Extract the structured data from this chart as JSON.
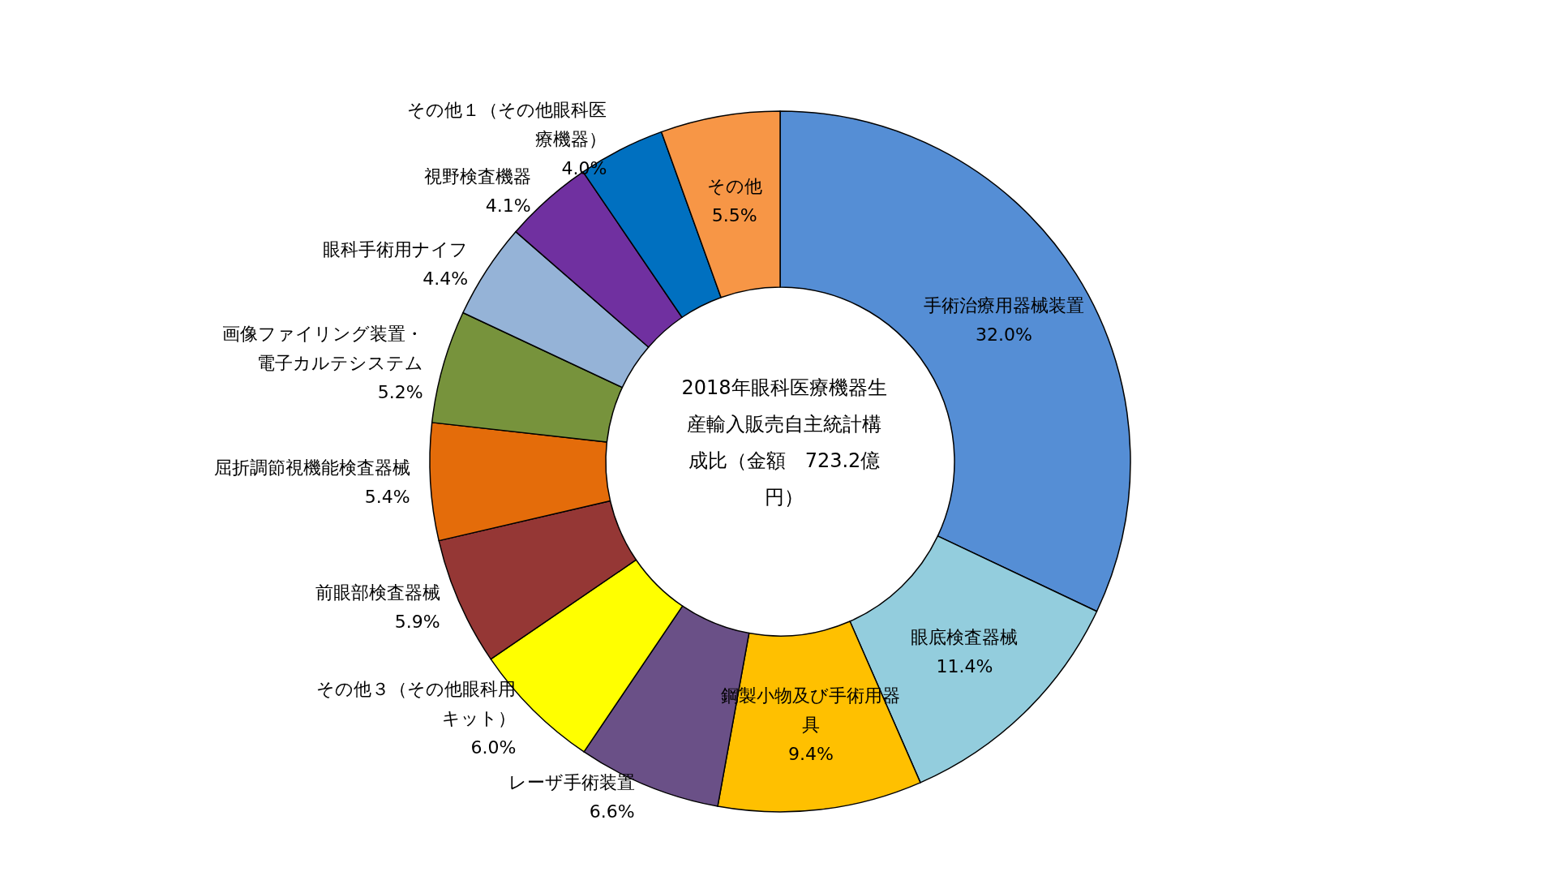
{
  "chart_data": {
    "type": "donut",
    "title": "2018年眼科医療機器生産輸入販売自主統計構成比（金額　723.2億円）",
    "categories": [
      "手術治療用器械装置",
      "眼底検査器械",
      "鋼製小物及び手術用器具",
      "レーザ手術装置",
      "その他３（その他眼科用キット）",
      "前眼部検査器械",
      "屈折調節視機能検査器械",
      "画像ファイリング装置・電子カルテシステム",
      "眼科手術用ナイフ",
      "視野検査機器",
      "その他１（その他眼科医療機器）",
      "その他"
    ],
    "values": [
      32.0,
      11.4,
      9.4,
      6.6,
      6.0,
      5.9,
      5.4,
      5.2,
      4.4,
      4.1,
      4.0,
      5.5
    ],
    "value_labels": [
      "32.0%",
      "11.4%",
      "9.4%",
      "6.6%",
      "6.0%",
      "5.9%",
      "5.4%",
      "5.2%",
      "4.4%",
      "4.1%",
      "4.0%",
      "5.5%"
    ],
    "colors": [
      "#558ed5",
      "#93cddd",
      "#ffc000",
      "#6a5087",
      "#ffff00",
      "#953735",
      "#e46c0a",
      "#77933c",
      "#95b3d7",
      "#7030a0",
      "#0070c0",
      "#f79646"
    ],
    "legend": false
  }
}
